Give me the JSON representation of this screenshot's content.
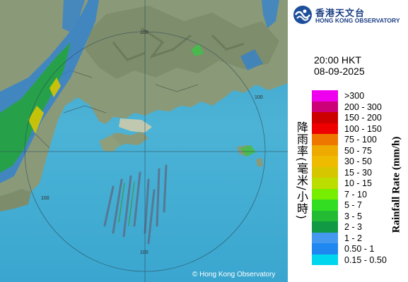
{
  "map": {
    "range_ring_labels": [
      "100",
      "100",
      "100",
      "100"
    ],
    "copyright": "© Hong Kong Observatory"
  },
  "legend": {
    "logo_chinese": "香港天文台",
    "logo_english": "HONG KONG OBSERVATORY",
    "time": "20:00 HKT",
    "date": "08-09-2025",
    "title_chinese": "降雨率(毫米/小時)",
    "title_english": "Rainfall Rate (mm/h)",
    "scale": [
      {
        "label": ">300",
        "color": "#ee00ee"
      },
      {
        "label": "200 - 300",
        "color": "#cc0077"
      },
      {
        "label": "150 - 200",
        "color": "#cc0000"
      },
      {
        "label": "100 - 150",
        "color": "#ee0000"
      },
      {
        "label": "75 - 100",
        "color": "#ee7700"
      },
      {
        "label": "50 - 75",
        "color": "#eeaa00"
      },
      {
        "label": "30 - 50",
        "color": "#eebb00"
      },
      {
        "label": "15 - 30",
        "color": "#d6c600"
      },
      {
        "label": "10 - 15",
        "color": "#bbdd00"
      },
      {
        "label": "7 - 10",
        "color": "#77ee00"
      },
      {
        "label": "5 - 7",
        "color": "#33dd22"
      },
      {
        "label": "3 - 5",
        "color": "#22bb33"
      },
      {
        "label": "2 - 3",
        "color": "#119944"
      },
      {
        "label": "1 - 2",
        "color": "#4499ee"
      },
      {
        "label": "0.50 - 1",
        "color": "#1f88f0"
      },
      {
        "label": "0.15 - 0.50",
        "color": "#00d6ee"
      }
    ]
  }
}
